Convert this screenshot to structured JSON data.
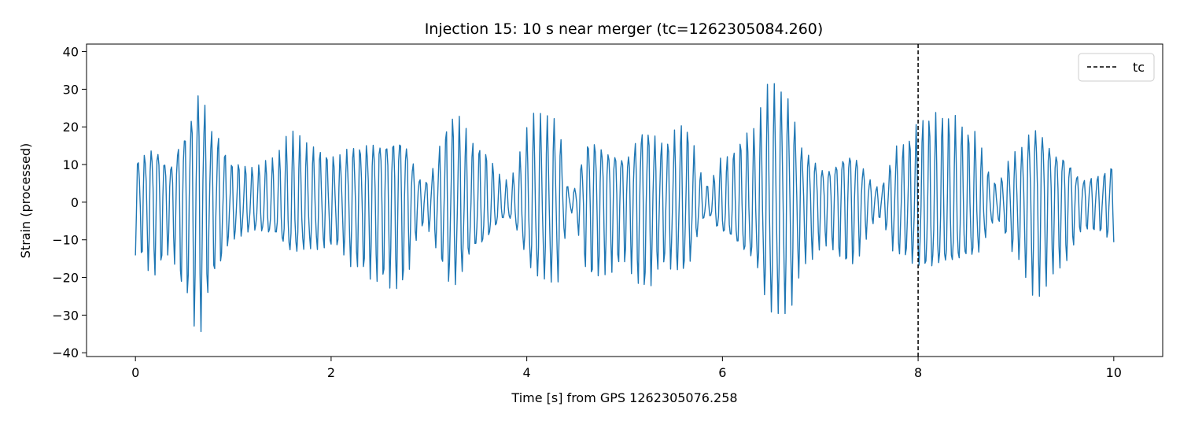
{
  "chart_data": {
    "type": "line",
    "title": "Injection 15: 10 s near merger (tc=1262305084.260)",
    "xlabel": "Time [s] from GPS 1262305076.258",
    "ylabel": "Strain (processed)",
    "xlim": [
      -0.5,
      10.5
    ],
    "ylim": [
      -41,
      42
    ],
    "xticks": [
      0,
      2,
      4,
      6,
      8,
      10
    ],
    "xtick_labels": [
      "0",
      "2",
      "4",
      "6",
      "8",
      "10"
    ],
    "yticks": [
      -40,
      -30,
      -20,
      -10,
      0,
      10,
      20,
      30,
      40
    ],
    "ytick_labels": [
      "−40",
      "−30",
      "−20",
      "−10",
      "0",
      "10",
      "20",
      "30",
      "40"
    ],
    "grid": false,
    "legend": {
      "position": "top-right",
      "entries": [
        {
          "label": "tc",
          "style": "dashed",
          "color": "#000000"
        }
      ]
    },
    "vline": {
      "x": 8.0,
      "label": "tc",
      "color": "#000000",
      "style": "dashed"
    },
    "series": [
      {
        "color": "#1f77b4",
        "x_start": 0,
        "x_end": 10,
        "sample_count": 1000,
        "oscillation_hz": 14.6,
        "envelope": [
          [
            0.0,
            15
          ],
          [
            0.2,
            20
          ],
          [
            0.35,
            14
          ],
          [
            0.5,
            25
          ],
          [
            0.65,
            37
          ],
          [
            0.8,
            22
          ],
          [
            1.0,
            12
          ],
          [
            1.2,
            10
          ],
          [
            1.4,
            12
          ],
          [
            1.6,
            19
          ],
          [
            1.8,
            16
          ],
          [
            2.05,
            14
          ],
          [
            2.25,
            19
          ],
          [
            2.5,
            22
          ],
          [
            2.7,
            24
          ],
          [
            2.95,
            7
          ],
          [
            3.25,
            26
          ],
          [
            3.5,
            16
          ],
          [
            3.8,
            6
          ],
          [
            4.1,
            25
          ],
          [
            4.3,
            25
          ],
          [
            4.45,
            3
          ],
          [
            4.65,
            22
          ],
          [
            4.85,
            19
          ],
          [
            5.0,
            17
          ],
          [
            5.2,
            25
          ],
          [
            5.4,
            19
          ],
          [
            5.6,
            23
          ],
          [
            5.85,
            5
          ],
          [
            6.0,
            12
          ],
          [
            6.3,
            20
          ],
          [
            6.5,
            35
          ],
          [
            6.65,
            33
          ],
          [
            6.85,
            17
          ],
          [
            7.05,
            12
          ],
          [
            7.3,
            18
          ],
          [
            7.6,
            5
          ],
          [
            7.8,
            17
          ],
          [
            8.1,
            24
          ],
          [
            8.3,
            24
          ],
          [
            8.55,
            20
          ],
          [
            8.8,
            6
          ],
          [
            9.0,
            16
          ],
          [
            9.2,
            26
          ],
          [
            9.45,
            18
          ],
          [
            9.7,
            8
          ],
          [
            9.85,
            9
          ],
          [
            10.0,
            12
          ]
        ]
      }
    ]
  }
}
